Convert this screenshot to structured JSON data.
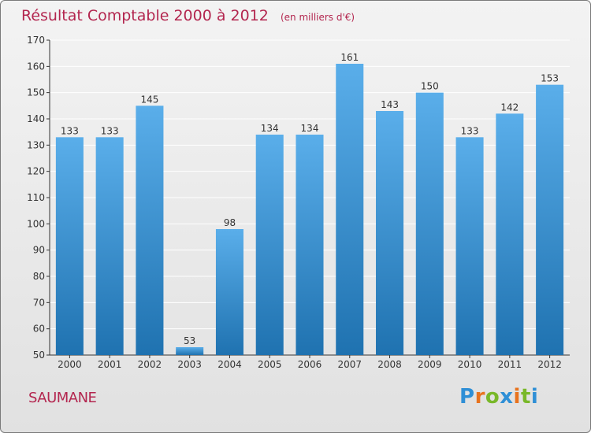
{
  "title": "Résultat Comptable 2000 à 2012",
  "unit_note": "(en milliers d'€)",
  "place": "SAUMANE",
  "logo_text": "Proxiti",
  "colors": {
    "title": "#b3264f",
    "bar_top": "#5aaeea",
    "bar_bottom": "#1f72b0",
    "axis": "#333333",
    "grid": "#ffffff"
  },
  "chart_data": {
    "type": "bar",
    "title": "Résultat Comptable 2000 à 2012",
    "xlabel": "",
    "ylabel": "",
    "categories": [
      "2000",
      "2001",
      "2002",
      "2003",
      "2004",
      "2005",
      "2006",
      "2007",
      "2008",
      "2009",
      "2010",
      "2011",
      "2012"
    ],
    "values": [
      133,
      133,
      145,
      53,
      98,
      134,
      134,
      161,
      143,
      150,
      133,
      142,
      153
    ],
    "ylim": [
      50,
      170
    ],
    "yticks": [
      50,
      60,
      70,
      80,
      90,
      100,
      110,
      120,
      130,
      140,
      150,
      160,
      170
    ],
    "grid": true
  }
}
